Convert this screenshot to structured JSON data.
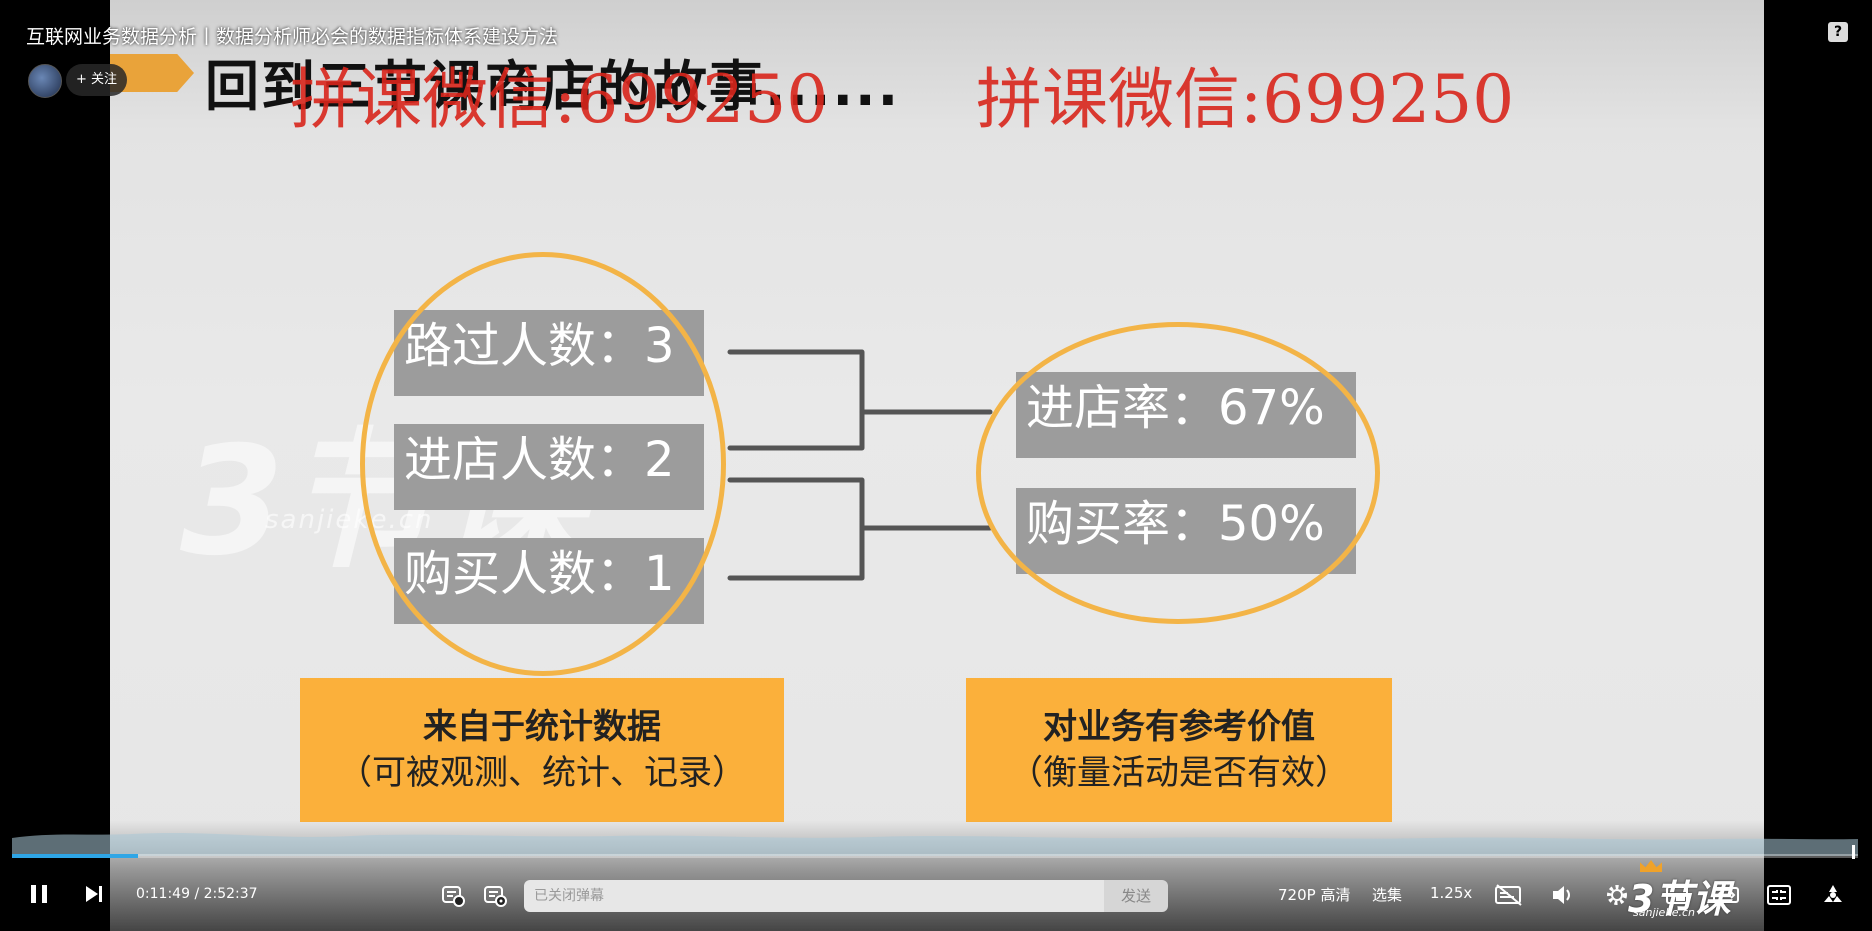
{
  "video": {
    "title": "互联网业务数据分析丨数据分析师必会的数据指标体系建设方法",
    "follow_label": "+ 关注",
    "help_label": "?"
  },
  "slide": {
    "title": "回到三节课商店的故事......",
    "watermark_wechat": "拼课微信:699250",
    "watermark_logo": "3节课",
    "watermark_logo_sub": "sanjieke.cn",
    "left_items": [
      {
        "label": "路过人数：3"
      },
      {
        "label": "进店人数：2"
      },
      {
        "label": "购买人数：1"
      }
    ],
    "right_items": [
      {
        "label": "进店率：67%"
      },
      {
        "label": "购买率：50%"
      }
    ],
    "left_note": {
      "line1": "来自于统计数据",
      "line2": "（可被观测、统计、记录）"
    },
    "right_note": {
      "line1": "对业务有参考价值",
      "line2": "（衡量活动是否有效）"
    },
    "colors": {
      "ring": "#f3b447",
      "note_bg": "#fbb03b",
      "box_bg": "#9c9c9c",
      "watermark": "#d9261c"
    }
  },
  "controls": {
    "current_time": "0:11:49",
    "separator": "/",
    "total_time": "2:52:37",
    "progress": 0.068,
    "danmu_placeholder": "已关闭弹幕",
    "send_label": "发送",
    "quality_label": "720P 高清",
    "episodes_label": "选集",
    "speed_label": "1.25x",
    "brand_logo": "3节课",
    "brand_sub": "sanjieke.cn",
    "accent": "#2fa6e6"
  }
}
